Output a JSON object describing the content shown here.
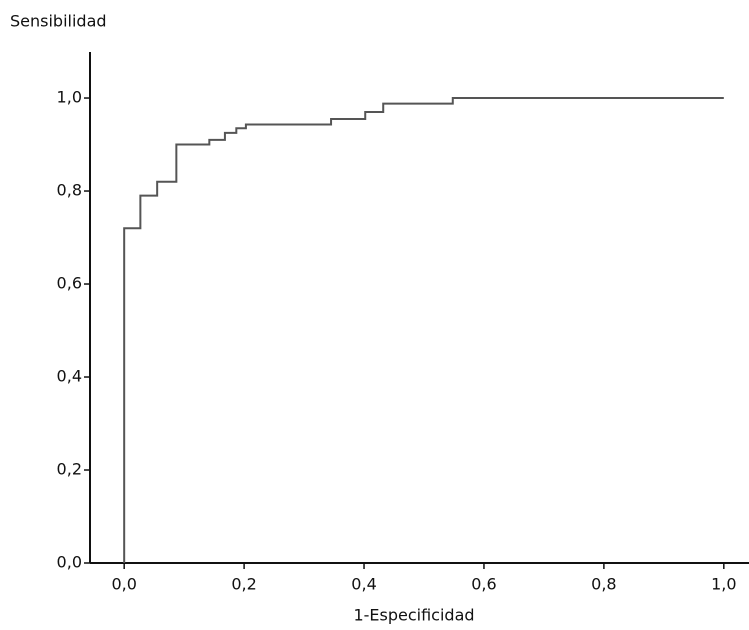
{
  "chart_data": {
    "type": "line",
    "x_label": "1-Especificidad",
    "y_label": "Sensibilidad",
    "xlim": [
      -0.057,
      1.042
    ],
    "ylim": [
      0,
      1.099
    ],
    "xticks": [
      {
        "value": 0,
        "label": "0,0"
      },
      {
        "value": 0.2,
        "label": "0,2"
      },
      {
        "value": 0.4,
        "label": "0,4"
      },
      {
        "value": 0.6,
        "label": "0,6"
      },
      {
        "value": 0.8,
        "label": "0,8"
      },
      {
        "value": 1,
        "label": "1,0"
      }
    ],
    "yticks": [
      {
        "value": 0,
        "label": "0,0"
      },
      {
        "value": 0.2,
        "label": "0,2"
      },
      {
        "value": 0.4,
        "label": "0,4"
      },
      {
        "value": 0.6,
        "label": "0,6"
      },
      {
        "value": 0.8,
        "label": "0,8"
      },
      {
        "value": 1,
        "label": "1,0"
      }
    ],
    "color": "#555555",
    "x": [
      0,
      0,
      0.027,
      0.027,
      0.055,
      0.055,
      0.087,
      0.087,
      0.142,
      0.142,
      0.168,
      0.168,
      0.187,
      0.187,
      0.203,
      0.203,
      0.345,
      0.345,
      0.402,
      0.402,
      0.432,
      0.432,
      0.548,
      0.548,
      1.0
    ],
    "values": [
      0,
      0.72,
      0.72,
      0.79,
      0.79,
      0.82,
      0.82,
      0.9,
      0.9,
      0.91,
      0.91,
      0.925,
      0.925,
      0.935,
      0.935,
      0.943,
      0.943,
      0.955,
      0.955,
      0.97,
      0.97,
      0.988,
      0.988,
      1.0,
      1.0
    ]
  }
}
